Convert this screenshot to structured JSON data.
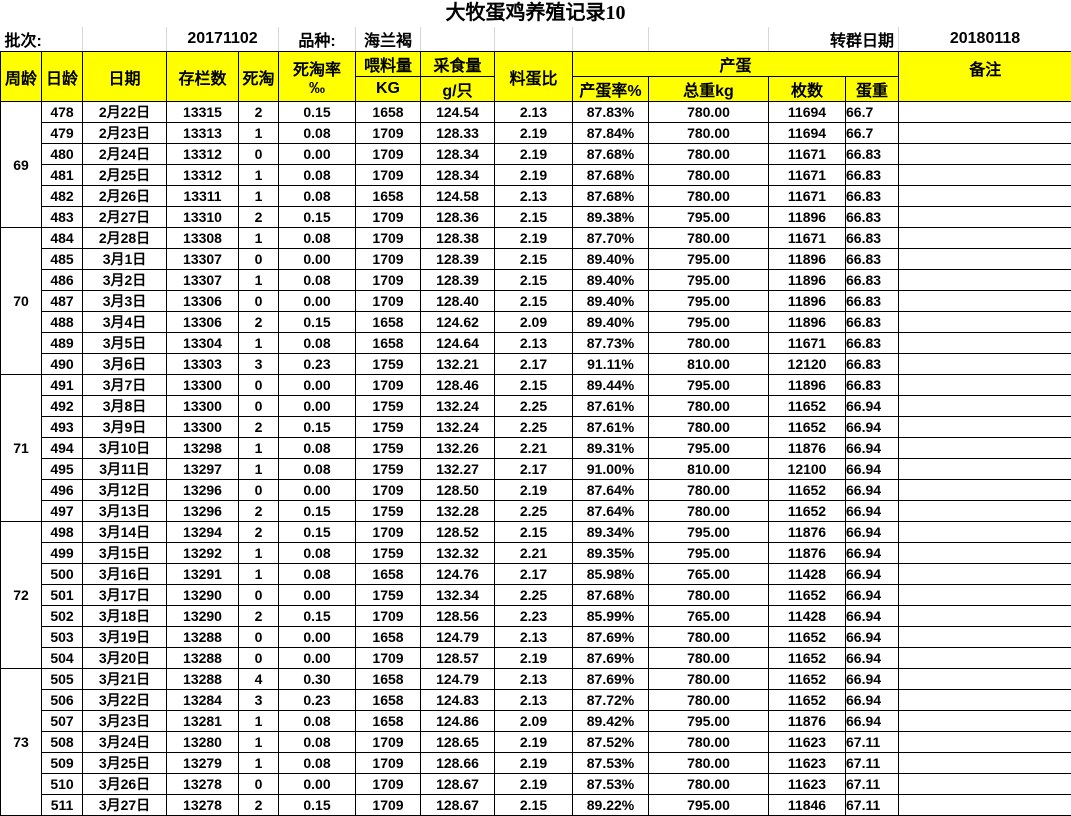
{
  "title": "大牧蛋鸡养殖记录10",
  "batch": {
    "batch_label": "批次:",
    "batch_value": "20171102",
    "breed_label": "品种:",
    "breed_value": "海兰褐",
    "transfer_label": "转群日期",
    "transfer_value": "20180118"
  },
  "header": {
    "week_age": "周龄",
    "day_age": "日龄",
    "date": "日期",
    "stock": "存栏数",
    "deaths": "死淘",
    "death_rate": "死淘率",
    "death_rate_unit": "‰",
    "feed": "喂料量",
    "feed_unit": "KG",
    "intake": "采食量",
    "intake_unit": "g/只",
    "feed_egg_ratio": "料蛋比",
    "egg_production": "产蛋",
    "laying_rate": "产蛋率%",
    "total_weight": "总重kg",
    "count": "枚数",
    "egg_weight": "蛋重",
    "remarks": "备注"
  },
  "highlight_color": "#ffff00",
  "weeks": [
    {
      "week": "69",
      "rows": [
        [
          "478",
          "2月22日",
          "13315",
          "2",
          "0.15",
          "1658",
          "124.54",
          "2.13",
          "87.83%",
          "780.00",
          "11694",
          "66.7"
        ],
        [
          "479",
          "2月23日",
          "13313",
          "1",
          "0.08",
          "1709",
          "128.33",
          "2.19",
          "87.84%",
          "780.00",
          "11694",
          "66.7"
        ],
        [
          "480",
          "2月24日",
          "13312",
          "0",
          "0.00",
          "1709",
          "128.34",
          "2.19",
          "87.68%",
          "780.00",
          "11671",
          "66.83"
        ],
        [
          "481",
          "2月25日",
          "13312",
          "1",
          "0.08",
          "1709",
          "128.34",
          "2.19",
          "87.68%",
          "780.00",
          "11671",
          "66.83"
        ],
        [
          "482",
          "2月26日",
          "13311",
          "1",
          "0.08",
          "1658",
          "124.58",
          "2.13",
          "87.68%",
          "780.00",
          "11671",
          "66.83"
        ],
        [
          "483",
          "2月27日",
          "13310",
          "2",
          "0.15",
          "1709",
          "128.36",
          "2.15",
          "89.38%",
          "795.00",
          "11896",
          "66.83"
        ]
      ]
    },
    {
      "week": "70",
      "rows": [
        [
          "484",
          "2月28日",
          "13308",
          "1",
          "0.08",
          "1709",
          "128.38",
          "2.19",
          "87.70%",
          "780.00",
          "11671",
          "66.83"
        ],
        [
          "485",
          "3月1日",
          "13307",
          "0",
          "0.00",
          "1709",
          "128.39",
          "2.15",
          "89.40%",
          "795.00",
          "11896",
          "66.83"
        ],
        [
          "486",
          "3月2日",
          "13307",
          "1",
          "0.08",
          "1709",
          "128.39",
          "2.15",
          "89.40%",
          "795.00",
          "11896",
          "66.83"
        ],
        [
          "487",
          "3月3日",
          "13306",
          "0",
          "0.00",
          "1709",
          "128.40",
          "2.15",
          "89.40%",
          "795.00",
          "11896",
          "66.83"
        ],
        [
          "488",
          "3月4日",
          "13306",
          "2",
          "0.15",
          "1658",
          "124.62",
          "2.09",
          "89.40%",
          "795.00",
          "11896",
          "66.83"
        ],
        [
          "489",
          "3月5日",
          "13304",
          "1",
          "0.08",
          "1658",
          "124.64",
          "2.13",
          "87.73%",
          "780.00",
          "11671",
          "66.83"
        ],
        [
          "490",
          "3月6日",
          "13303",
          "3",
          "0.23",
          "1759",
          "132.21",
          "2.17",
          "91.11%",
          "810.00",
          "12120",
          "66.83"
        ]
      ]
    },
    {
      "week": "71",
      "rows": [
        [
          "491",
          "3月7日",
          "13300",
          "0",
          "0.00",
          "1709",
          "128.46",
          "2.15",
          "89.44%",
          "795.00",
          "11896",
          "66.83"
        ],
        [
          "492",
          "3月8日",
          "13300",
          "0",
          "0.00",
          "1759",
          "132.24",
          "2.25",
          "87.61%",
          "780.00",
          "11652",
          "66.94"
        ],
        [
          "493",
          "3月9日",
          "13300",
          "2",
          "0.15",
          "1759",
          "132.24",
          "2.25",
          "87.61%",
          "780.00",
          "11652",
          "66.94"
        ],
        [
          "494",
          "3月10日",
          "13298",
          "1",
          "0.08",
          "1759",
          "132.26",
          "2.21",
          "89.31%",
          "795.00",
          "11876",
          "66.94"
        ],
        [
          "495",
          "3月11日",
          "13297",
          "1",
          "0.08",
          "1759",
          "132.27",
          "2.17",
          "91.00%",
          "810.00",
          "12100",
          "66.94"
        ],
        [
          "496",
          "3月12日",
          "13296",
          "0",
          "0.00",
          "1709",
          "128.50",
          "2.19",
          "87.64%",
          "780.00",
          "11652",
          "66.94"
        ],
        [
          "497",
          "3月13日",
          "13296",
          "2",
          "0.15",
          "1759",
          "132.28",
          "2.25",
          "87.64%",
          "780.00",
          "11652",
          "66.94"
        ]
      ]
    },
    {
      "week": "72",
      "rows": [
        [
          "498",
          "3月14日",
          "13294",
          "2",
          "0.15",
          "1709",
          "128.52",
          "2.15",
          "89.34%",
          "795.00",
          "11876",
          "66.94"
        ],
        [
          "499",
          "3月15日",
          "13292",
          "1",
          "0.08",
          "1759",
          "132.32",
          "2.21",
          "89.35%",
          "795.00",
          "11876",
          "66.94"
        ],
        [
          "500",
          "3月16日",
          "13291",
          "1",
          "0.08",
          "1658",
          "124.76",
          "2.17",
          "85.98%",
          "765.00",
          "11428",
          "66.94"
        ],
        [
          "501",
          "3月17日",
          "13290",
          "0",
          "0.00",
          "1759",
          "132.34",
          "2.25",
          "87.68%",
          "780.00",
          "11652",
          "66.94"
        ],
        [
          "502",
          "3月18日",
          "13290",
          "2",
          "0.15",
          "1709",
          "128.56",
          "2.23",
          "85.99%",
          "765.00",
          "11428",
          "66.94"
        ],
        [
          "503",
          "3月19日",
          "13288",
          "0",
          "0.00",
          "1658",
          "124.79",
          "2.13",
          "87.69%",
          "780.00",
          "11652",
          "66.94"
        ],
        [
          "504",
          "3月20日",
          "13288",
          "0",
          "0.00",
          "1709",
          "128.57",
          "2.19",
          "87.69%",
          "780.00",
          "11652",
          "66.94"
        ]
      ]
    },
    {
      "week": "73",
      "rows": [
        [
          "505",
          "3月21日",
          "13288",
          "4",
          "0.30",
          "1658",
          "124.79",
          "2.13",
          "87.69%",
          "780.00",
          "11652",
          "66.94"
        ],
        [
          "506",
          "3月22日",
          "13284",
          "3",
          "0.23",
          "1658",
          "124.83",
          "2.13",
          "87.72%",
          "780.00",
          "11652",
          "66.94"
        ],
        [
          "507",
          "3月23日",
          "13281",
          "1",
          "0.08",
          "1658",
          "124.86",
          "2.09",
          "89.42%",
          "795.00",
          "11876",
          "66.94"
        ],
        [
          "508",
          "3月24日",
          "13280",
          "1",
          "0.08",
          "1709",
          "128.65",
          "2.19",
          "87.52%",
          "780.00",
          "11623",
          "67.11"
        ],
        [
          "509",
          "3月25日",
          "13279",
          "1",
          "0.08",
          "1709",
          "128.66",
          "2.19",
          "87.53%",
          "780.00",
          "11623",
          "67.11"
        ],
        [
          "510",
          "3月26日",
          "13278",
          "0",
          "0.00",
          "1709",
          "128.67",
          "2.19",
          "87.53%",
          "780.00",
          "11623",
          "67.11"
        ],
        [
          "511",
          "3月27日",
          "13278",
          "2",
          "0.15",
          "1709",
          "128.67",
          "2.15",
          "89.22%",
          "795.00",
          "11846",
          "67.11"
        ]
      ]
    }
  ]
}
